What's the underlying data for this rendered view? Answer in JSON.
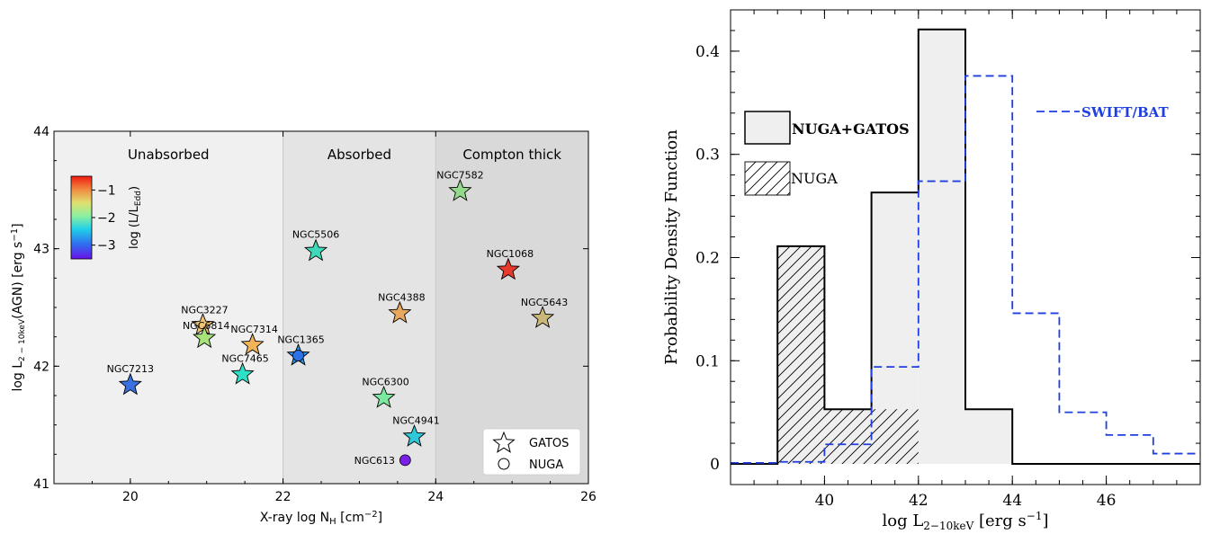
{
  "chart_data": [
    {
      "type": "scatter",
      "xlabel": "X-ray log N",
      "xlabel_sub": "H",
      "xlabel_unit": " [cm",
      "xlabel_exp": "−2",
      "xlabel_close": "]",
      "ylabel": "log L",
      "ylabel_sub": "2 − 10keV",
      "ylabel_rest": "(AGN) [erg s",
      "ylabel_exp": "−1",
      "ylabel_close": "]",
      "xlim": [
        19,
        26
      ],
      "ylim": [
        41,
        44
      ],
      "xticks": [
        20,
        22,
        24,
        26
      ],
      "yticks": [
        41,
        42,
        43,
        44
      ],
      "regions": [
        {
          "label": "Unabsorbed",
          "x0": 19,
          "x1": 22,
          "color": "#f0f0f0"
        },
        {
          "label": "Absorbed",
          "x0": 22,
          "x1": 24,
          "color": "#e4e4e4"
        },
        {
          "label": "Compton thick",
          "x0": 24,
          "x1": 26,
          "color": "#d9d9d9"
        }
      ],
      "colorbar": {
        "label": "log (L/L",
        "label_sub": "Edd",
        "label_close": ")",
        "ticks": [
          "−1",
          "−2",
          "−3"
        ],
        "range": [
          -3.5,
          -0.5
        ]
      },
      "legend": {
        "position": "bottom-right",
        "entries": [
          {
            "marker": "star",
            "label": "GATOS"
          },
          {
            "marker": "circle",
            "label": "NUGA"
          }
        ]
      },
      "points": [
        {
          "name": "NGC7213",
          "x": 20.0,
          "y": 41.84,
          "lum": -2.7,
          "marker": "star",
          "color": "#3a6fe0"
        },
        {
          "name": "NGC3227",
          "x": 20.95,
          "y": 42.35,
          "lum": -1.5,
          "marker": "star",
          "color": "#f0c470"
        },
        {
          "name": "NGC6814",
          "x": 20.97,
          "y": 42.24,
          "lum": -1.9,
          "marker": "star",
          "color": "#a8e27a"
        },
        {
          "name": "NGC7314",
          "x": 21.6,
          "y": 42.18,
          "lum": -1.3,
          "marker": "star",
          "color": "#f2b459"
        },
        {
          "name": "NGC7465",
          "x": 21.47,
          "y": 41.93,
          "lum": -2.4,
          "marker": "star",
          "color": "#2fe0c8"
        },
        {
          "name": "NGC1365",
          "x": 22.2,
          "y": 42.09,
          "lum": -2.6,
          "marker": "star",
          "color": "#2e8fe2"
        },
        {
          "name": "NGC1365",
          "x": 22.2,
          "y": 42.09,
          "lum": -2.9,
          "marker": "circle",
          "color": "#2c72e6"
        },
        {
          "name": "NGC5506",
          "x": 22.43,
          "y": 42.98,
          "lum": -2.2,
          "marker": "star",
          "color": "#3fd8b8"
        },
        {
          "name": "NGC4388",
          "x": 23.53,
          "y": 42.45,
          "lum": -1.2,
          "marker": "star",
          "color": "#e8a860"
        },
        {
          "name": "NGC6300",
          "x": 23.32,
          "y": 41.73,
          "lum": -1.9,
          "marker": "star",
          "color": "#7ce8a0"
        },
        {
          "name": "NGC4941",
          "x": 23.72,
          "y": 41.4,
          "lum": -2.5,
          "marker": "star",
          "color": "#2ec8d8"
        },
        {
          "name": "NGC613",
          "x": 23.6,
          "y": 41.2,
          "lum": -3.3,
          "marker": "circle",
          "color": "#7a1ee8"
        },
        {
          "name": "NGC7582",
          "x": 24.32,
          "y": 43.49,
          "lum": -1.8,
          "marker": "star",
          "color": "#94d88c"
        },
        {
          "name": "NGC1068",
          "x": 24.95,
          "y": 42.82,
          "lum": -0.7,
          "marker": "star",
          "color": "#e83a2a"
        },
        {
          "name": "NGC5643",
          "x": 25.4,
          "y": 42.41,
          "lum": -1.3,
          "marker": "star",
          "color": "#c9b878"
        }
      ]
    },
    {
      "type": "histogram",
      "xlabel": "log L",
      "xlabel_sub": "2−10keV",
      "xlabel_unit": " [erg s",
      "xlabel_exp": "−1",
      "xlabel_close": "]",
      "ylabel": "Probability Density Function",
      "xlim": [
        38,
        48
      ],
      "ylim": [
        -0.02,
        0.44
      ],
      "xticks": [
        40,
        42,
        44,
        46
      ],
      "yticks": [
        0,
        0.1,
        0.2,
        0.3,
        0.4
      ],
      "ytick_labels": [
        "0",
        "0.1",
        "0.2",
        "0.3",
        "0.4"
      ],
      "series": [
        {
          "name": "NUGA+GATOS",
          "style": "solid-filled",
          "color": "#000000",
          "fill": "#efefef",
          "bins": [
            {
              "x0": 38,
              "x1": 39,
              "value": 0
            },
            {
              "x0": 39,
              "x1": 40,
              "value": 0.211
            },
            {
              "x0": 40,
              "x1": 41,
              "value": 0.053
            },
            {
              "x0": 41,
              "x1": 42,
              "value": 0.263
            },
            {
              "x0": 42,
              "x1": 43,
              "value": 0.421
            },
            {
              "x0": 43,
              "x1": 44,
              "value": 0.053
            },
            {
              "x0": 44,
              "x1": 48,
              "value": 0
            }
          ]
        },
        {
          "name": "NUGA",
          "style": "hatched",
          "color": "#000000",
          "bins": [
            {
              "x0": 39,
              "x1": 40,
              "value": 0.211
            },
            {
              "x0": 40,
              "x1": 42,
              "value": 0.053
            }
          ]
        },
        {
          "name": "SWIFT/BAT",
          "style": "dashed",
          "color": "#1f3fe0",
          "bins": [
            {
              "x0": 38,
              "x1": 39,
              "value": 0.001
            },
            {
              "x0": 39,
              "x1": 40,
              "value": 0.002
            },
            {
              "x0": 40,
              "x1": 41,
              "value": 0.019
            },
            {
              "x0": 41,
              "x1": 42,
              "value": 0.094
            },
            {
              "x0": 42,
              "x1": 43,
              "value": 0.274
            },
            {
              "x0": 43,
              "x1": 44,
              "value": 0.376
            },
            {
              "x0": 44,
              "x1": 45,
              "value": 0.146
            },
            {
              "x0": 45,
              "x1": 46,
              "value": 0.05
            },
            {
              "x0": 46,
              "x1": 47,
              "value": 0.028
            },
            {
              "x0": 47,
              "x1": 48,
              "value": 0.01
            }
          ]
        }
      ],
      "legend_labels": {
        "combined": "NUGA+GATOS",
        "nuga": "NUGA",
        "swift": "SWIFT/BAT"
      }
    }
  ]
}
